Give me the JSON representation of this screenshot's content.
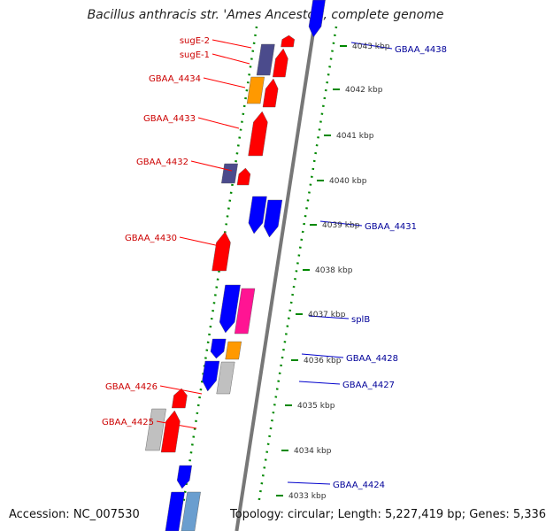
{
  "title": "Bacillus anthracis str. 'Ames Ancestor', complete genome",
  "accession": "Accession: NC_007530",
  "topology": "Topology: circular; Length: 5,227,419 bp; Genes: 5,336",
  "colors": {
    "red": "#ff0000",
    "blue": "#0000ff",
    "pink": "#ff1493",
    "orange": "#ff9900",
    "navy": "#4b4b8c",
    "grey": "#c0c0c0",
    "steel": "#6a9ecf",
    "leftLabel": "#cc0000",
    "rightLabel": "#000099",
    "guide": "#008800"
  },
  "kbp_ticks": [
    "4043 kbp",
    "4042 kbp",
    "4041 kbp",
    "4040 kbp",
    "4039 kbp",
    "4038 kbp",
    "4037 kbp",
    "4036 kbp",
    "4035 kbp",
    "4034 kbp",
    "4033 kbp"
  ],
  "left_labels": [
    "sugE-2",
    "sugE-1",
    "GBAA_4434",
    "GBAA_4433",
    "GBAA_4432",
    "GBAA_4430",
    "GBAA_4426",
    "GBAA_4425"
  ],
  "right_labels": [
    "GBAA_4438",
    "GBAA_4431",
    "splB",
    "GBAA_4428",
    "GBAA_4427",
    "GBAA_4424"
  ]
}
